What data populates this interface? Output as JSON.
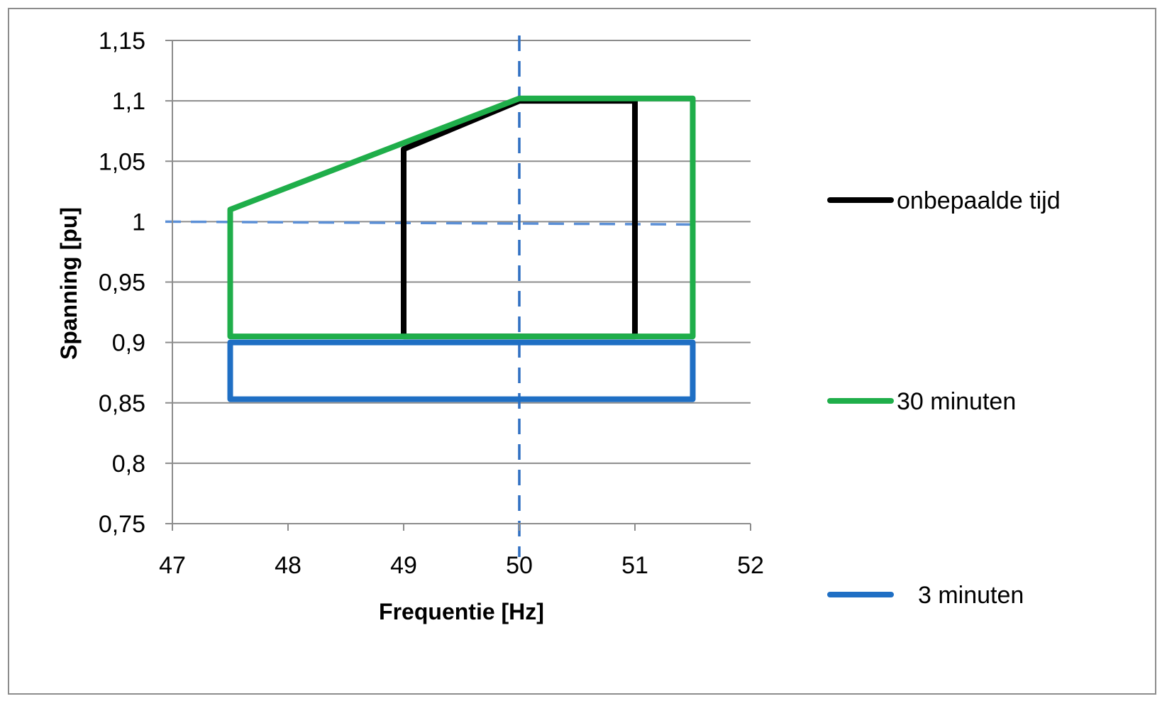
{
  "chart_data": {
    "type": "line",
    "xlabel": "Frequentie [Hz]",
    "ylabel": "Spanning  [pu]",
    "xlim": [
      47,
      52
    ],
    "ylim": [
      0.75,
      1.15
    ],
    "x_ticks": [
      47,
      48,
      49,
      50,
      51,
      52
    ],
    "x_tick_labels": [
      "47",
      "48",
      "49",
      "50",
      "51",
      "52"
    ],
    "y_ticks": [
      1.15,
      1.1,
      1.05,
      1,
      0.95,
      0.9,
      0.85,
      0.8,
      0.75
    ],
    "y_tick_labels": [
      "1,15",
      "1,1",
      "1,05",
      "1",
      "0,95",
      "0,9",
      "0,85",
      "0,8",
      "0,75"
    ],
    "grid": "horizontal",
    "legend_position": "right",
    "series": [
      {
        "name": "onbepaalde tijd",
        "color": "#000000",
        "x": [
          49,
          49,
          50,
          51,
          51,
          49
        ],
        "y": [
          0.905,
          1.06,
          1.1,
          1.1,
          0.905,
          0.905
        ]
      },
      {
        "name": "30 minuten",
        "color": "#1fae4a",
        "x": [
          47.5,
          47.5,
          50,
          51.5,
          51.5,
          47.5
        ],
        "y": [
          0.905,
          1.01,
          1.102,
          1.102,
          0.905,
          0.905
        ]
      },
      {
        "name": "3 minuten",
        "color": "#1f6fc4",
        "x": [
          47.5,
          47.5,
          51.5,
          51.5,
          47.5
        ],
        "y": [
          0.853,
          0.9,
          0.9,
          0.853,
          0.853
        ]
      }
    ],
    "reference_lines": [
      {
        "orientation": "horizontal",
        "value": 1,
        "style": "dashed",
        "color": "#5b8fd6"
      },
      {
        "orientation": "vertical",
        "value": 50,
        "style": "dashed",
        "color": "#2f6fc2"
      }
    ]
  }
}
